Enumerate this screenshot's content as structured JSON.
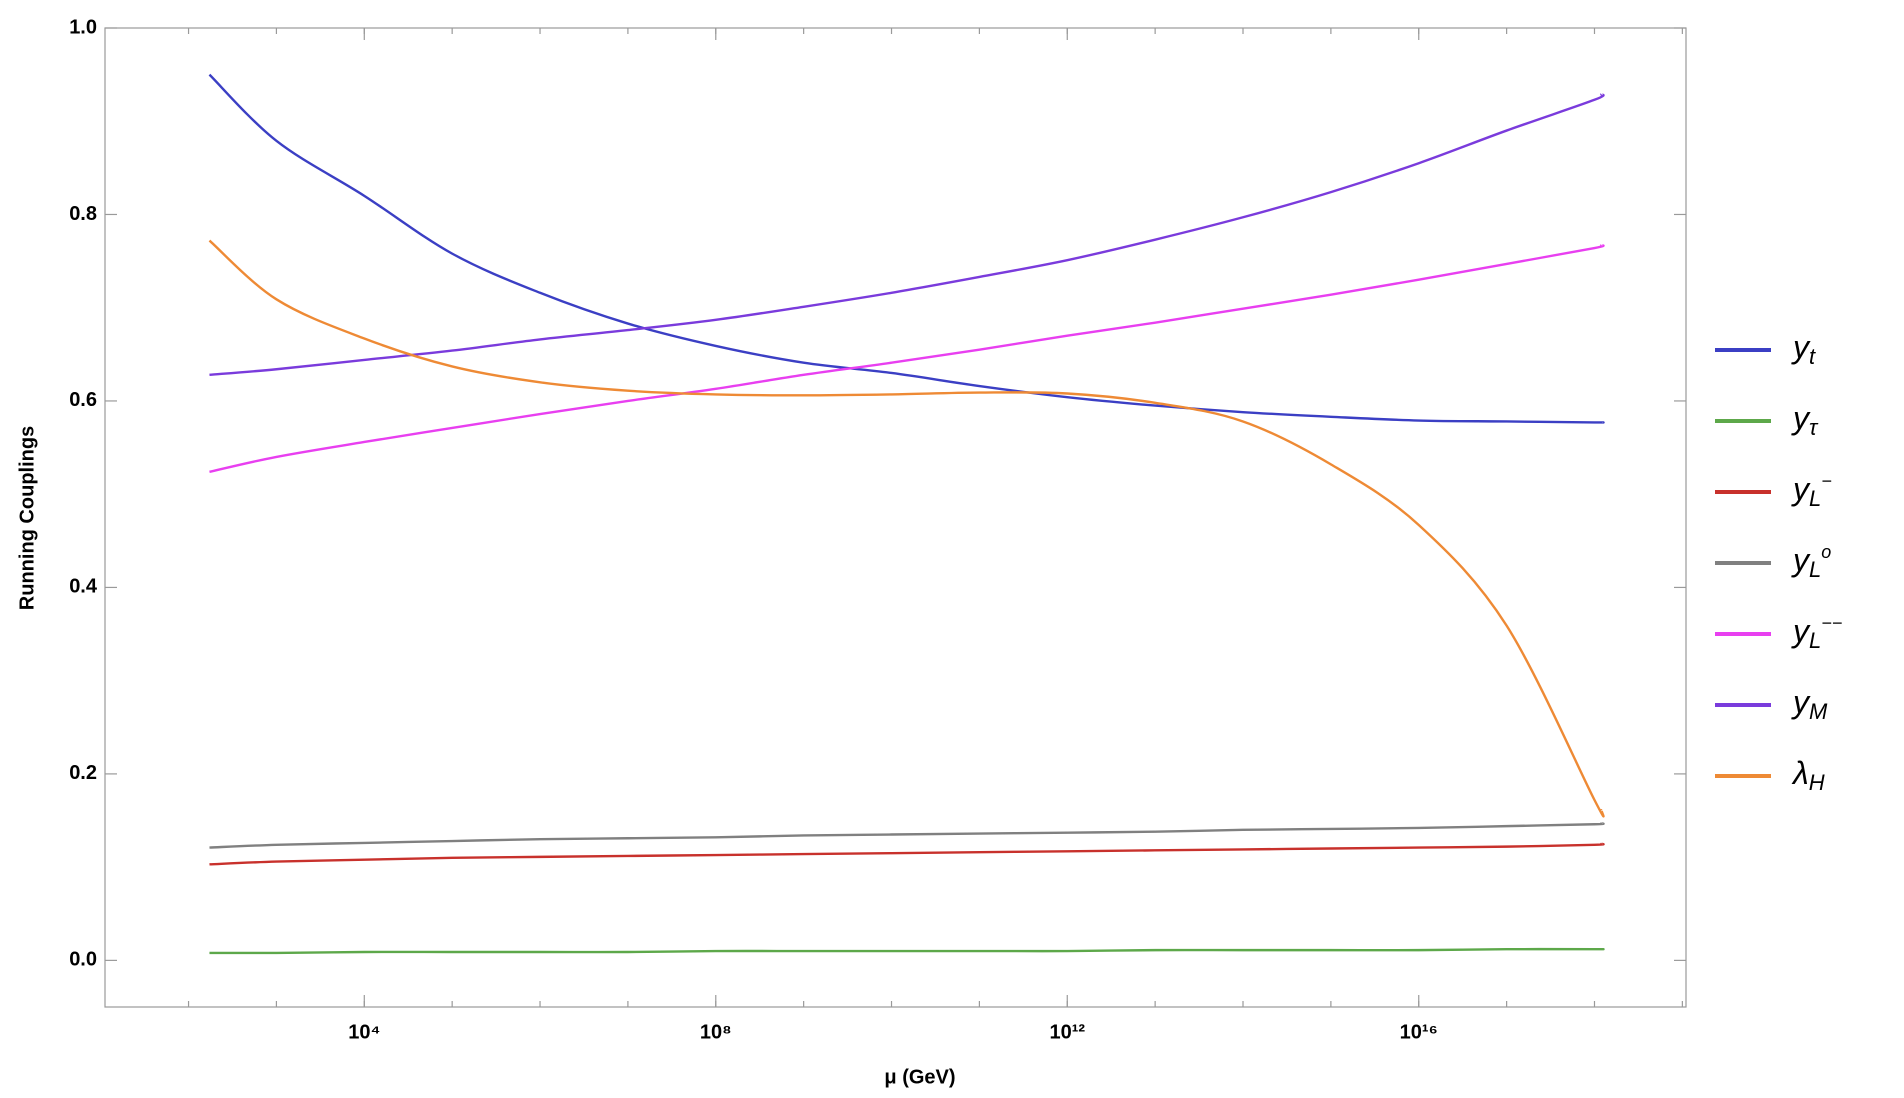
{
  "chart_data": {
    "type": "line",
    "xlabel": "μ (GeV)",
    "ylabel": "Running Couplings",
    "xscale": "log",
    "x": [
      173,
      1000.0,
      10000.0,
      100000.0,
      1000000.0,
      10000000.0,
      100000000.0,
      1000000000.0,
      10000000000.0,
      100000000000.0,
      1000000000000.0,
      10000000000000.0,
      100000000000000.0,
      1000000000000000.0,
      1e+16,
      1e+17,
      1e+18,
      1.2e+18
    ],
    "xlim": [
      11.2,
      1.1e+19
    ],
    "xticks": [
      {
        "value": 10000.0,
        "label": "10⁴"
      },
      {
        "value": 100000000.0,
        "label": "10⁸"
      },
      {
        "value": 1000000000000.0,
        "label": "10¹²"
      },
      {
        "value": 1e+16,
        "label": "10¹⁶"
      }
    ],
    "ylim": [
      -0.05,
      1.0
    ],
    "yticks": [
      {
        "value": 0,
        "label": "0.0"
      },
      0.2,
      0.4,
      0.6,
      0.8,
      {
        "value": 1,
        "label": "1.0"
      }
    ],
    "legend": "right",
    "series": [
      {
        "name": "y",
        "sub": "t",
        "color": "#3b3fc4",
        "values": [
          0.95,
          0.879,
          0.82,
          0.758,
          0.716,
          0.683,
          0.659,
          0.641,
          0.63,
          0.616,
          0.604,
          0.595,
          0.588,
          0.583,
          0.579,
          0.578,
          0.577,
          0.577
        ]
      },
      {
        "name": "y",
        "sub": "τ",
        "color": "#5da84a",
        "values": [
          0.008,
          0.008,
          0.009,
          0.009,
          0.009,
          0.009,
          0.01,
          0.01,
          0.01,
          0.01,
          0.01,
          0.011,
          0.011,
          0.011,
          0.011,
          0.012,
          0.012,
          0.012
        ]
      },
      {
        "name": "y",
        "sub": "L",
        "sup": "−",
        "color": "#c8312c",
        "values": [
          0.103,
          0.106,
          0.108,
          0.11,
          0.111,
          0.112,
          0.113,
          0.114,
          0.115,
          0.116,
          0.117,
          0.118,
          0.119,
          0.12,
          0.121,
          0.122,
          0.124,
          0.125
        ]
      },
      {
        "name": "y",
        "sub": "L",
        "sup": "o",
        "color": "#808080",
        "values": [
          0.121,
          0.124,
          0.126,
          0.128,
          0.13,
          0.131,
          0.132,
          0.134,
          0.135,
          0.136,
          0.137,
          0.138,
          0.14,
          0.141,
          0.142,
          0.144,
          0.146,
          0.147
        ]
      },
      {
        "name": "y",
        "sub": "L",
        "sup": "−−",
        "color": "#e83ff0",
        "values": [
          0.524,
          0.54,
          0.556,
          0.571,
          0.586,
          0.6,
          0.613,
          0.628,
          0.641,
          0.655,
          0.67,
          0.684,
          0.699,
          0.714,
          0.73,
          0.747,
          0.764,
          0.767
        ]
      },
      {
        "name": "y",
        "sub": "M",
        "color": "#7a3bdc",
        "values": [
          0.628,
          0.634,
          0.644,
          0.654,
          0.666,
          0.676,
          0.687,
          0.701,
          0.716,
          0.733,
          0.751,
          0.773,
          0.797,
          0.824,
          0.855,
          0.89,
          0.923,
          0.929
        ]
      },
      {
        "name": "λ",
        "sub": "H",
        "color": "#ee8a35",
        "values": [
          0.772,
          0.709,
          0.667,
          0.637,
          0.62,
          0.611,
          0.607,
          0.606,
          0.607,
          0.609,
          0.608,
          0.598,
          0.578,
          0.532,
          0.467,
          0.359,
          0.172,
          0.161
        ]
      }
    ]
  }
}
